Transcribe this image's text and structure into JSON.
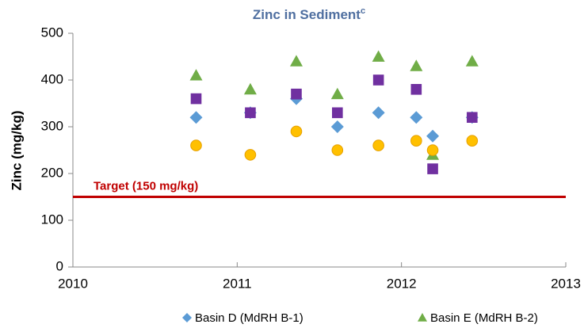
{
  "chart_data": {
    "type": "scatter",
    "title": "Zinc in Sediment",
    "title_superscript": "c",
    "y_label": "Zinc (mg/kg)",
    "xlim": [
      2010,
      2013
    ],
    "xticks": [
      2010,
      2011,
      2012,
      2013
    ],
    "ylim": [
      0,
      500
    ],
    "yticks": [
      0,
      100,
      200,
      300,
      400,
      500
    ],
    "x": [
      2010.75,
      2011.08,
      2011.36,
      2011.61,
      2011.86,
      2012.09,
      2012.19,
      2012.43
    ],
    "series": [
      {
        "name": "Basin D (MdRH B-1)",
        "marker": "diamond",
        "color": "#5b9bd5",
        "values": [
          320,
          330,
          360,
          300,
          330,
          320,
          280,
          320
        ]
      },
      {
        "name": "Basin E (MdRH B-2)",
        "marker": "triangle",
        "color": "#70ad47",
        "values": [
          410,
          380,
          440,
          370,
          450,
          430,
          240,
          440
        ]
      },
      {
        "marker": "square",
        "color": "#7030a0",
        "values": [
          360,
          330,
          370,
          330,
          400,
          380,
          210,
          320
        ]
      },
      {
        "marker": "circle",
        "color": "#ffc000",
        "values": [
          260,
          240,
          290,
          250,
          260,
          270,
          250,
          270
        ]
      }
    ],
    "target": {
      "label": "Target (150 mg/kg)",
      "value": 150,
      "color": "#c00000"
    },
    "legend": "bottom"
  }
}
